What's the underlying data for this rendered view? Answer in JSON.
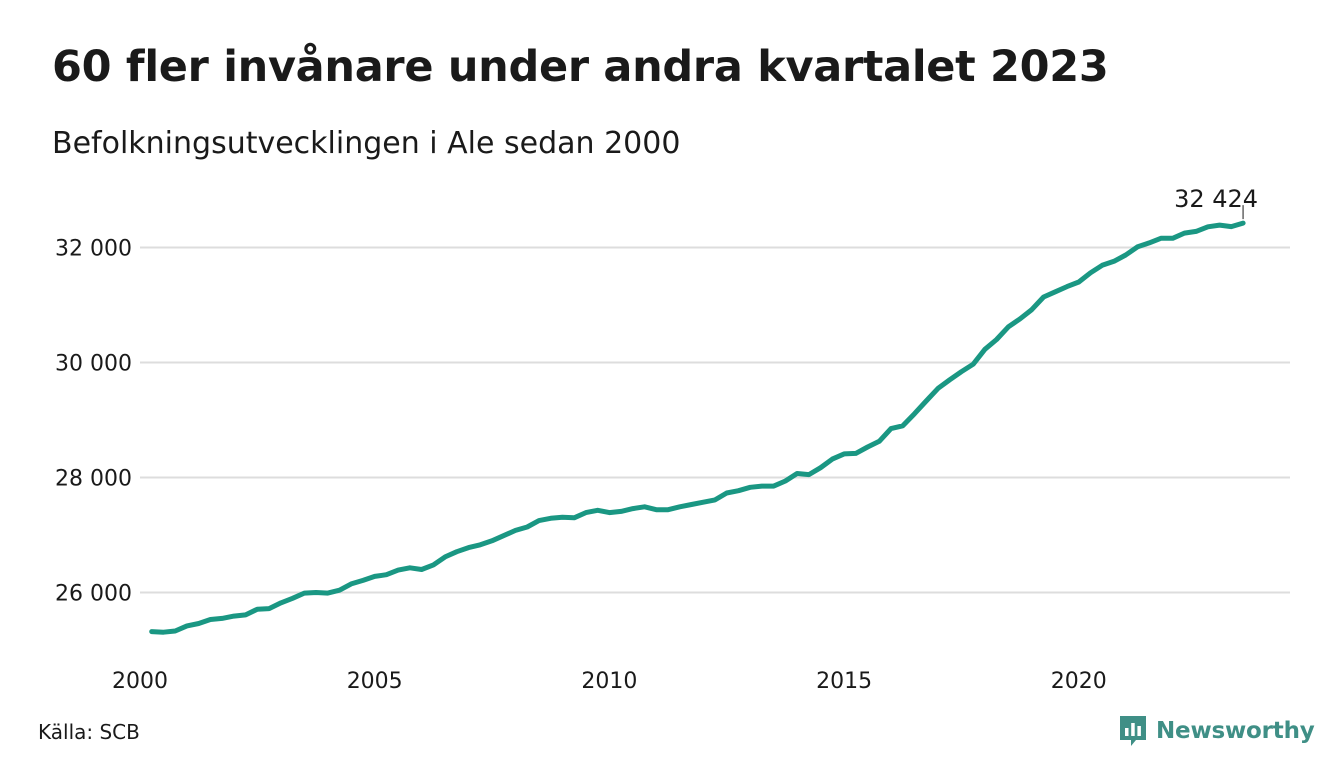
{
  "header": {
    "title": "60 fler invånare under andra kvartalet 2023",
    "subtitle": "Befolkningsutvecklingen i Ale sedan 2000"
  },
  "footer": {
    "source": "Källa: SCB",
    "brand": "Newsworthy"
  },
  "colors": {
    "line": "#1a9783",
    "grid": "#dddddd",
    "text": "#1a1a1a",
    "brand": "#3f8f86"
  },
  "chart_data": {
    "type": "line",
    "title": "60 fler invånare under andra kvartalet 2023",
    "subtitle": "Befolkningsutvecklingen i Ale sedan 2000",
    "xlabel": "",
    "ylabel": "",
    "grid": true,
    "legend": "none",
    "xlim": [
      2000,
      2024.5
    ],
    "ylim": [
      25000,
      33000
    ],
    "x_ticks": [
      2000,
      2005,
      2010,
      2015,
      2020
    ],
    "x_tick_labels": [
      "2000",
      "2005",
      "2010",
      "2015",
      "2020"
    ],
    "y_ticks": [
      26000,
      28000,
      30000,
      32000
    ],
    "y_tick_labels": [
      "26 000",
      "28 000",
      "30 000",
      "32 000"
    ],
    "end_label": "32 424",
    "series": [
      {
        "values": [
          {
            "x": 2000.25,
            "y": 25320
          },
          {
            "x": 2000.5,
            "y": 25310
          },
          {
            "x": 2000.75,
            "y": 25330
          },
          {
            "x": 2001.0,
            "y": 25420
          },
          {
            "x": 2001.25,
            "y": 25460
          },
          {
            "x": 2001.5,
            "y": 25530
          },
          {
            "x": 2001.75,
            "y": 25550
          },
          {
            "x": 2002.0,
            "y": 25590
          },
          {
            "x": 2002.25,
            "y": 25610
          },
          {
            "x": 2002.5,
            "y": 25710
          },
          {
            "x": 2002.75,
            "y": 25720
          },
          {
            "x": 2003.0,
            "y": 25820
          },
          {
            "x": 2003.25,
            "y": 25900
          },
          {
            "x": 2003.5,
            "y": 25990
          },
          {
            "x": 2003.75,
            "y": 26000
          },
          {
            "x": 2004.0,
            "y": 25990
          },
          {
            "x": 2004.25,
            "y": 26040
          },
          {
            "x": 2004.5,
            "y": 26150
          },
          {
            "x": 2004.75,
            "y": 26210
          },
          {
            "x": 2005.0,
            "y": 26280
          },
          {
            "x": 2005.25,
            "y": 26310
          },
          {
            "x": 2005.5,
            "y": 26390
          },
          {
            "x": 2005.75,
            "y": 26430
          },
          {
            "x": 2006.0,
            "y": 26400
          },
          {
            "x": 2006.25,
            "y": 26480
          },
          {
            "x": 2006.5,
            "y": 26620
          },
          {
            "x": 2006.75,
            "y": 26710
          },
          {
            "x": 2007.0,
            "y": 26780
          },
          {
            "x": 2007.25,
            "y": 26830
          },
          {
            "x": 2007.5,
            "y": 26900
          },
          {
            "x": 2007.75,
            "y": 26990
          },
          {
            "x": 2008.0,
            "y": 27080
          },
          {
            "x": 2008.25,
            "y": 27140
          },
          {
            "x": 2008.5,
            "y": 27250
          },
          {
            "x": 2008.75,
            "y": 27290
          },
          {
            "x": 2009.0,
            "y": 27310
          },
          {
            "x": 2009.25,
            "y": 27300
          },
          {
            "x": 2009.5,
            "y": 27390
          },
          {
            "x": 2009.75,
            "y": 27430
          },
          {
            "x": 2010.0,
            "y": 27390
          },
          {
            "x": 2010.25,
            "y": 27410
          },
          {
            "x": 2010.5,
            "y": 27460
          },
          {
            "x": 2010.75,
            "y": 27490
          },
          {
            "x": 2011.0,
            "y": 27440
          },
          {
            "x": 2011.25,
            "y": 27440
          },
          {
            "x": 2011.5,
            "y": 27490
          },
          {
            "x": 2011.75,
            "y": 27530
          },
          {
            "x": 2012.0,
            "y": 27570
          },
          {
            "x": 2012.25,
            "y": 27610
          },
          {
            "x": 2012.5,
            "y": 27730
          },
          {
            "x": 2012.75,
            "y": 27770
          },
          {
            "x": 2013.0,
            "y": 27830
          },
          {
            "x": 2013.25,
            "y": 27850
          },
          {
            "x": 2013.5,
            "y": 27850
          },
          {
            "x": 2013.75,
            "y": 27940
          },
          {
            "x": 2014.0,
            "y": 28070
          },
          {
            "x": 2014.25,
            "y": 28050
          },
          {
            "x": 2014.5,
            "y": 28170
          },
          {
            "x": 2014.75,
            "y": 28320
          },
          {
            "x": 2015.0,
            "y": 28410
          },
          {
            "x": 2015.25,
            "y": 28420
          },
          {
            "x": 2015.5,
            "y": 28530
          },
          {
            "x": 2015.75,
            "y": 28630
          },
          {
            "x": 2016.0,
            "y": 28850
          },
          {
            "x": 2016.25,
            "y": 28900
          },
          {
            "x": 2016.5,
            "y": 29110
          },
          {
            "x": 2016.75,
            "y": 29330
          },
          {
            "x": 2017.0,
            "y": 29550
          },
          {
            "x": 2017.25,
            "y": 29700
          },
          {
            "x": 2017.5,
            "y": 29840
          },
          {
            "x": 2017.75,
            "y": 29970
          },
          {
            "x": 2018.0,
            "y": 30230
          },
          {
            "x": 2018.25,
            "y": 30400
          },
          {
            "x": 2018.5,
            "y": 30620
          },
          {
            "x": 2018.75,
            "y": 30760
          },
          {
            "x": 2019.0,
            "y": 30920
          },
          {
            "x": 2019.25,
            "y": 31140
          },
          {
            "x": 2019.5,
            "y": 31230
          },
          {
            "x": 2019.75,
            "y": 31320
          },
          {
            "x": 2020.0,
            "y": 31400
          },
          {
            "x": 2020.25,
            "y": 31560
          },
          {
            "x": 2020.5,
            "y": 31690
          },
          {
            "x": 2020.75,
            "y": 31760
          },
          {
            "x": 2021.0,
            "y": 31870
          },
          {
            "x": 2021.25,
            "y": 32010
          },
          {
            "x": 2021.5,
            "y": 32080
          },
          {
            "x": 2021.75,
            "y": 32160
          },
          {
            "x": 2022.0,
            "y": 32160
          },
          {
            "x": 2022.25,
            "y": 32250
          },
          {
            "x": 2022.5,
            "y": 32280
          },
          {
            "x": 2022.75,
            "y": 32360
          },
          {
            "x": 2023.0,
            "y": 32390
          },
          {
            "x": 2023.25,
            "y": 32364
          },
          {
            "x": 2023.5,
            "y": 32424
          }
        ]
      }
    ]
  }
}
